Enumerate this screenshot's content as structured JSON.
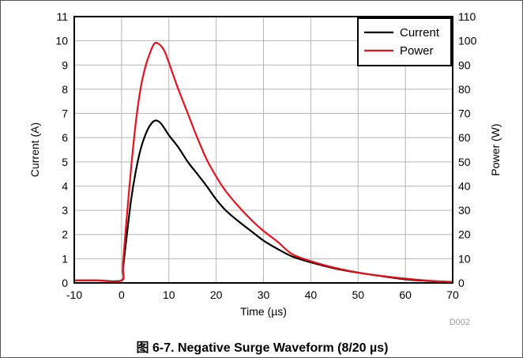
{
  "chart_data": {
    "type": "line",
    "xlabel": "Time (µs)",
    "ylabel_left": "Current (A)",
    "ylabel_right": "Power (W)",
    "xlim": [
      -10,
      70
    ],
    "ylim_left": [
      0,
      11
    ],
    "ylim_right": [
      0,
      110
    ],
    "xticks": [
      "-10",
      "0",
      "10",
      "20",
      "30",
      "40",
      "50",
      "60",
      "70"
    ],
    "yticks_left": [
      "0",
      "1",
      "2",
      "3",
      "4",
      "5",
      "6",
      "7",
      "8",
      "9",
      "10",
      "11"
    ],
    "yticks_right": [
      "0",
      "10",
      "20",
      "30",
      "40",
      "50",
      "60",
      "70",
      "80",
      "90",
      "100",
      "110"
    ],
    "grid": true,
    "legend_position": "top-right",
    "series": [
      {
        "name": "Current",
        "color": "#000000",
        "axis": "left",
        "x": [
          -10,
          -5,
          0,
          0.3,
          1,
          2,
          3,
          4,
          5,
          6,
          7,
          8,
          9,
          10,
          12,
          14,
          16,
          18,
          20,
          22,
          25,
          28,
          30,
          33,
          36,
          40,
          45,
          50,
          55,
          60,
          65,
          70
        ],
        "y": [
          0.1,
          0.1,
          0.1,
          0.6,
          1.8,
          3.4,
          4.6,
          5.5,
          6.1,
          6.5,
          6.7,
          6.65,
          6.4,
          6.1,
          5.6,
          5.0,
          4.5,
          4.0,
          3.45,
          3.0,
          2.5,
          2.05,
          1.75,
          1.4,
          1.1,
          0.85,
          0.6,
          0.42,
          0.28,
          0.15,
          0.08,
          0.04
        ]
      },
      {
        "name": "Power",
        "color": "#e8111c",
        "axis": "right",
        "x": [
          -10,
          -5,
          0,
          0.3,
          1,
          2,
          3,
          4,
          5,
          6,
          7,
          8,
          9,
          10,
          12,
          14,
          16,
          18,
          20,
          22,
          25,
          28,
          30,
          33,
          36,
          40,
          45,
          50,
          55,
          60,
          65,
          70
        ],
        "y": [
          1,
          1,
          1,
          8,
          25,
          47,
          66,
          80,
          89,
          95,
          99,
          98.5,
          96,
          91,
          80,
          70,
          60,
          51,
          44,
          38,
          31,
          25,
          21.5,
          17,
          12,
          9,
          6.3,
          4.3,
          2.9,
          1.8,
          0.9,
          0.4
        ]
      }
    ]
  },
  "caption": "图 6-7. Negative Surge Waveform (8/20 µs)",
  "figure_code": "D002"
}
